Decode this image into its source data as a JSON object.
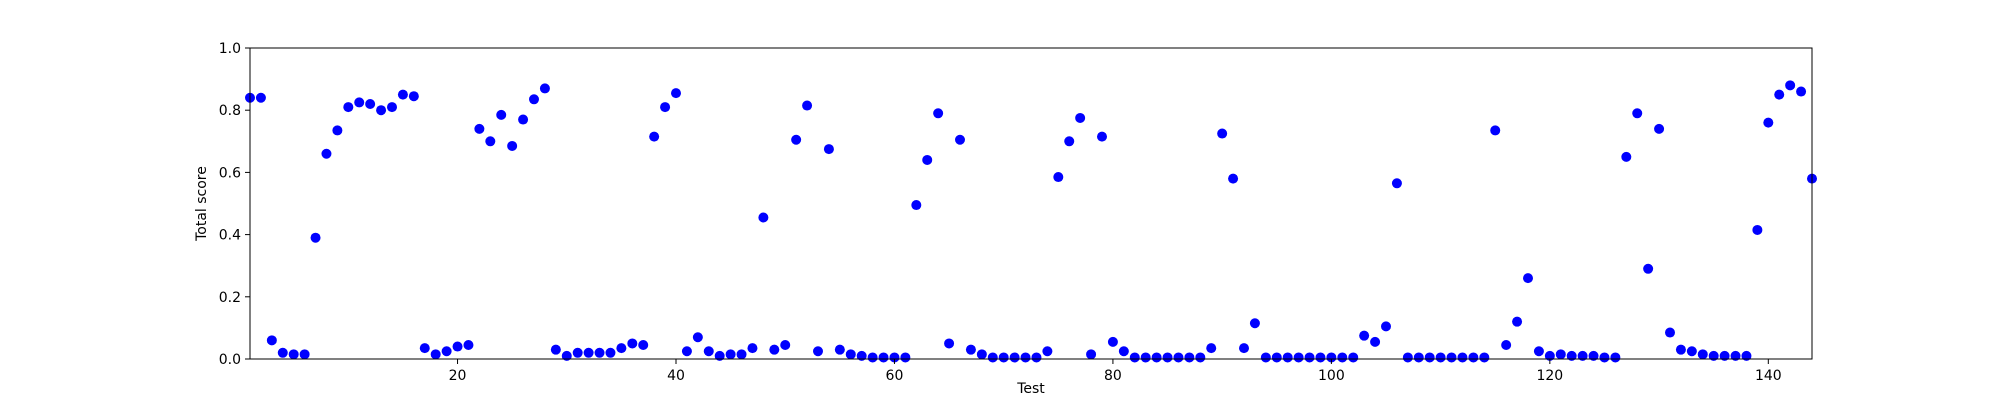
{
  "chart_data": {
    "type": "scatter",
    "title": "",
    "xlabel": "Test",
    "ylabel": "Total score",
    "xlim": [
      1,
      144
    ],
    "ylim": [
      0,
      1.0
    ],
    "xticks": [
      20,
      40,
      60,
      80,
      100,
      120,
      140
    ],
    "yticks": [
      "0.0",
      "0.2",
      "0.4",
      "0.6",
      "0.8",
      "1.0"
    ],
    "grid": false,
    "marker_color": "#0000ff",
    "series": [
      {
        "x": [
          1,
          2,
          3,
          4,
          5,
          6,
          7,
          8,
          9,
          10,
          11,
          12,
          13,
          14,
          15,
          16,
          17,
          18,
          19,
          20,
          21,
          22,
          23,
          24,
          25,
          26,
          27,
          28,
          29,
          30,
          31,
          32,
          33,
          34,
          35,
          36,
          37,
          38,
          39,
          40,
          41,
          42,
          43,
          44,
          45,
          46,
          47,
          48,
          49,
          50,
          51,
          52,
          53,
          54,
          55,
          56,
          57,
          58,
          59,
          60,
          61,
          62,
          63,
          64,
          65,
          66,
          67,
          68,
          69,
          70,
          71,
          72,
          73,
          74,
          75,
          76,
          77,
          78,
          79,
          80,
          81,
          82,
          83,
          84,
          85,
          86,
          87,
          88,
          89,
          90,
          91,
          92,
          93,
          94,
          95,
          96,
          97,
          98,
          99,
          100,
          101,
          102,
          103,
          104,
          105,
          106,
          107,
          108,
          109,
          110,
          111,
          112,
          113,
          114,
          115,
          116,
          117,
          118,
          119,
          120,
          121,
          122,
          123,
          124,
          125,
          126,
          127,
          128,
          129,
          130,
          131,
          132,
          133,
          134,
          135,
          136,
          137,
          138,
          139,
          140,
          141,
          142,
          143,
          144
        ],
        "values": [
          0.84,
          0.84,
          0.06,
          0.02,
          0.015,
          0.015,
          0.39,
          0.66,
          0.735,
          0.81,
          0.825,
          0.82,
          0.8,
          0.81,
          0.85,
          0.845,
          0.035,
          0.015,
          0.025,
          0.04,
          0.045,
          0.74,
          0.7,
          0.785,
          0.685,
          0.77,
          0.835,
          0.87,
          0.03,
          0.01,
          0.02,
          0.02,
          0.02,
          0.02,
          0.035,
          0.05,
          0.045,
          0.715,
          0.81,
          0.855,
          0.025,
          0.07,
          0.025,
          0.01,
          0.015,
          0.015,
          0.035,
          0.455,
          0.03,
          0.045,
          0.705,
          0.815,
          0.025,
          0.675,
          0.03,
          0.015,
          0.01,
          0.005,
          0.005,
          0.005,
          0.005,
          0.495,
          0.64,
          0.79,
          0.05,
          0.705,
          0.03,
          0.015,
          0.005,
          0.005,
          0.005,
          0.005,
          0.005,
          0.025,
          0.585,
          0.7,
          0.775,
          0.015,
          0.715,
          0.055,
          0.025,
          0.005,
          0.005,
          0.005,
          0.005,
          0.005,
          0.005,
          0.005,
          0.035,
          0.725,
          0.58,
          0.035,
          0.115,
          0.005,
          0.005,
          0.005,
          0.005,
          0.005,
          0.005,
          0.005,
          0.005,
          0.005,
          0.075,
          0.055,
          0.105,
          0.565,
          0.005,
          0.005,
          0.005,
          0.005,
          0.005,
          0.005,
          0.005,
          0.005,
          0.735,
          0.045,
          0.12,
          0.26,
          0.025,
          0.01,
          0.015,
          0.01,
          0.01,
          0.01,
          0.005,
          0.005,
          0.65,
          0.79,
          0.29,
          0.74,
          0.085,
          0.03,
          0.025,
          0.015,
          0.01,
          0.01,
          0.01,
          0.01,
          0.415,
          0.76,
          0.85,
          0.88,
          0.86,
          0.58
        ]
      }
    ]
  }
}
